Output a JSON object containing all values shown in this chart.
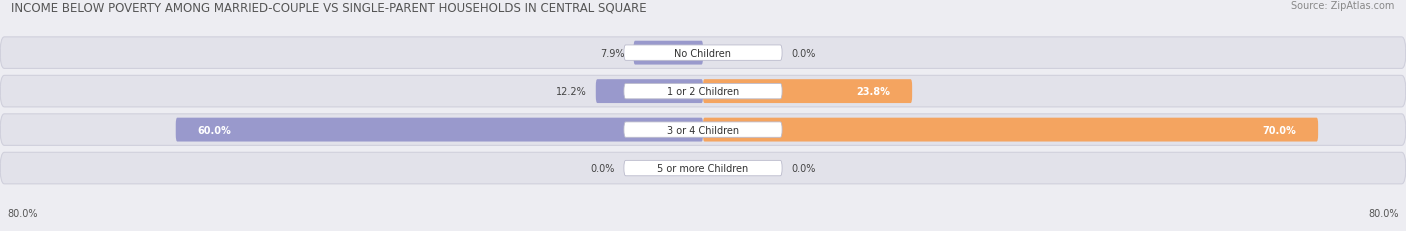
{
  "title": "INCOME BELOW POVERTY AMONG MARRIED-COUPLE VS SINGLE-PARENT HOUSEHOLDS IN CENTRAL SQUARE",
  "source": "Source: ZipAtlas.com",
  "categories": [
    "No Children",
    "1 or 2 Children",
    "3 or 4 Children",
    "5 or more Children"
  ],
  "married_values": [
    7.9,
    12.2,
    60.0,
    0.0
  ],
  "single_values": [
    0.0,
    23.8,
    70.0,
    0.0
  ],
  "married_color": "#9999cc",
  "single_color": "#f4a460",
  "axis_min": -80.0,
  "axis_max": 80.0,
  "background_color": "#ededf2",
  "bar_background": "#e2e2ea",
  "bar_edge_color": "#d0d0dc",
  "title_fontsize": 8.5,
  "source_fontsize": 7,
  "value_fontsize": 7,
  "cat_fontsize": 7,
  "legend_fontsize": 7,
  "tick_fontsize": 7
}
